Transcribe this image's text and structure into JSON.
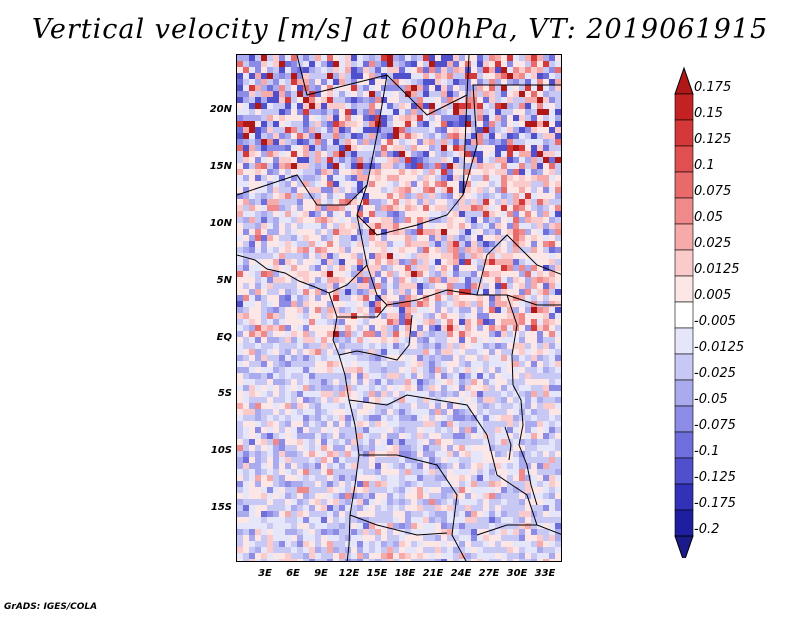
{
  "title": "Vertical velocity [m/s] at 600hPa, VT: 2019061915",
  "footer": "GrADS: IGES/COLA",
  "map": {
    "lat_labels": [
      "20N",
      "15N",
      "10N",
      "5N",
      "EQ",
      "5S",
      "10S",
      "15S"
    ],
    "lat_values": [
      20,
      15,
      10,
      5,
      0,
      -5,
      -10,
      -15
    ],
    "lon_labels": [
      "3E",
      "6E",
      "9E",
      "12E",
      "15E",
      "18E",
      "21E",
      "24E",
      "27E",
      "30E",
      "33E"
    ],
    "lon_values": [
      3,
      6,
      9,
      12,
      15,
      18,
      21,
      24,
      27,
      30,
      33
    ],
    "lat_range": [
      -20,
      24
    ],
    "lon_range": [
      0,
      34.4
    ]
  },
  "colorbar": {
    "levels": [
      "0.175",
      "0.15",
      "0.125",
      "0.1",
      "0.075",
      "0.05",
      "0.025",
      "0.0125",
      "0.005",
      "-0.005",
      "-0.0125",
      "-0.025",
      "-0.05",
      "-0.075",
      "-0.1",
      "-0.125",
      "-0.175",
      "-0.2"
    ],
    "colors": [
      "#b01818",
      "#c42222",
      "#d43838",
      "#e05050",
      "#e86a6a",
      "#f08a8a",
      "#f7aaaa",
      "#fbcaca",
      "#fde6e6",
      "#ffffff",
      "#e6e6fb",
      "#c8c8f5",
      "#aaaaee",
      "#8c8ce6",
      "#6e6edc",
      "#5050cc",
      "#3232b8",
      "#1e1ea0",
      "#1a1a8a"
    ],
    "units": "m/s"
  }
}
